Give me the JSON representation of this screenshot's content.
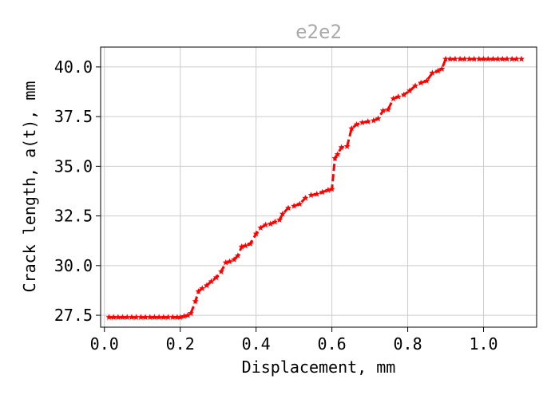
{
  "chart_data": {
    "type": "line",
    "title": "e2e2",
    "xlabel": "Displacement, mm",
    "ylabel": "Crack length, a(t), mm",
    "xlim": [
      -0.01,
      1.14
    ],
    "ylim": [
      26.9,
      41.0
    ],
    "x_ticks": [
      "0.0",
      "0.2",
      "0.4",
      "0.6",
      "0.8",
      "1.0"
    ],
    "y_ticks": [
      "27.5",
      "30.0",
      "32.5",
      "35.0",
      "37.5",
      "40.0"
    ],
    "grid": true,
    "series": [
      {
        "color": "#ff0000",
        "line_style": "dashed",
        "marker": "star",
        "x": [
          0.012,
          0.024,
          0.036,
          0.048,
          0.06,
          0.072,
          0.084,
          0.096,
          0.108,
          0.12,
          0.132,
          0.144,
          0.156,
          0.168,
          0.18,
          0.192,
          0.2,
          0.21,
          0.22,
          0.228,
          0.24,
          0.248,
          0.258,
          0.27,
          0.282,
          0.295,
          0.308,
          0.32,
          0.33,
          0.342,
          0.352,
          0.362,
          0.372,
          0.385,
          0.4,
          0.412,
          0.425,
          0.438,
          0.45,
          0.462,
          0.47,
          0.485,
          0.5,
          0.515,
          0.53,
          0.545,
          0.56,
          0.575,
          0.59,
          0.6,
          0.608,
          0.615,
          0.625,
          0.64,
          0.652,
          0.665,
          0.68,
          0.695,
          0.71,
          0.722,
          0.735,
          0.748,
          0.762,
          0.775,
          0.79,
          0.805,
          0.82,
          0.835,
          0.85,
          0.865,
          0.88,
          0.89,
          0.9,
          0.912,
          0.925,
          0.938,
          0.95,
          0.962,
          0.975,
          0.988,
          1.0,
          1.012,
          1.025,
          1.038,
          1.05,
          1.062,
          1.075,
          1.087,
          1.1
        ],
        "y": [
          27.4,
          27.4,
          27.4,
          27.4,
          27.4,
          27.4,
          27.4,
          27.4,
          27.4,
          27.4,
          27.4,
          27.4,
          27.4,
          27.4,
          27.4,
          27.4,
          27.4,
          27.45,
          27.5,
          27.6,
          28.2,
          28.7,
          28.85,
          29.0,
          29.2,
          29.4,
          29.7,
          30.15,
          30.2,
          30.3,
          30.5,
          30.95,
          31.0,
          31.1,
          31.6,
          31.9,
          32.05,
          32.1,
          32.2,
          32.3,
          32.6,
          32.9,
          33.0,
          33.1,
          33.4,
          33.55,
          33.6,
          33.7,
          33.8,
          33.85,
          35.4,
          35.6,
          35.95,
          36.0,
          36.9,
          37.1,
          37.2,
          37.25,
          37.3,
          37.4,
          37.8,
          37.85,
          38.4,
          38.5,
          38.6,
          38.8,
          39.05,
          39.2,
          39.3,
          39.7,
          39.8,
          39.9,
          40.4,
          40.4,
          40.4,
          40.4,
          40.4,
          40.4,
          40.4,
          40.4,
          40.4,
          40.4,
          40.4,
          40.4,
          40.4,
          40.4,
          40.4,
          40.4,
          40.4
        ]
      }
    ]
  }
}
